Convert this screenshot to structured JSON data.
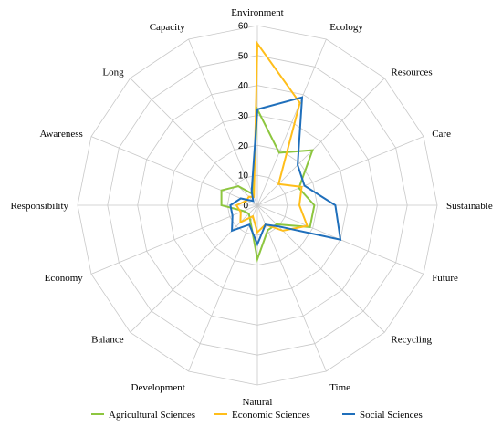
{
  "chart_data": {
    "type": "radar",
    "axes": [
      "Environment",
      "Ecology",
      "Resources",
      "Care",
      "Sustainable",
      "Future",
      "Recycling",
      "Time",
      "Natural",
      "Development",
      "Balance",
      "Economy",
      "Responsibility",
      "Awareness",
      "Long",
      "Capacity"
    ],
    "rlim": [
      0,
      60
    ],
    "ticks": [
      0,
      10,
      20,
      30,
      40,
      50,
      60
    ],
    "grid": true,
    "legend_position": "bottom",
    "series": [
      {
        "name": "Agricultural Sciences",
        "color": "#8dc63f",
        "values": [
          32,
          19,
          26,
          15,
          19,
          19,
          9,
          9,
          18,
          6,
          4,
          5,
          12,
          13,
          9,
          4
        ]
      },
      {
        "name": "Economic Sciences",
        "color": "#ffbe1a",
        "values": [
          54,
          37,
          10,
          16,
          14,
          18,
          12,
          7,
          9,
          4,
          8,
          6,
          7,
          4,
          4,
          3
        ]
      },
      {
        "name": "Social Sciences",
        "color": "#1f6fbb",
        "values": [
          32,
          39,
          19,
          17,
          26,
          30,
          10,
          7,
          13,
          7,
          12,
          9,
          9,
          6,
          2,
          5
        ]
      }
    ]
  }
}
